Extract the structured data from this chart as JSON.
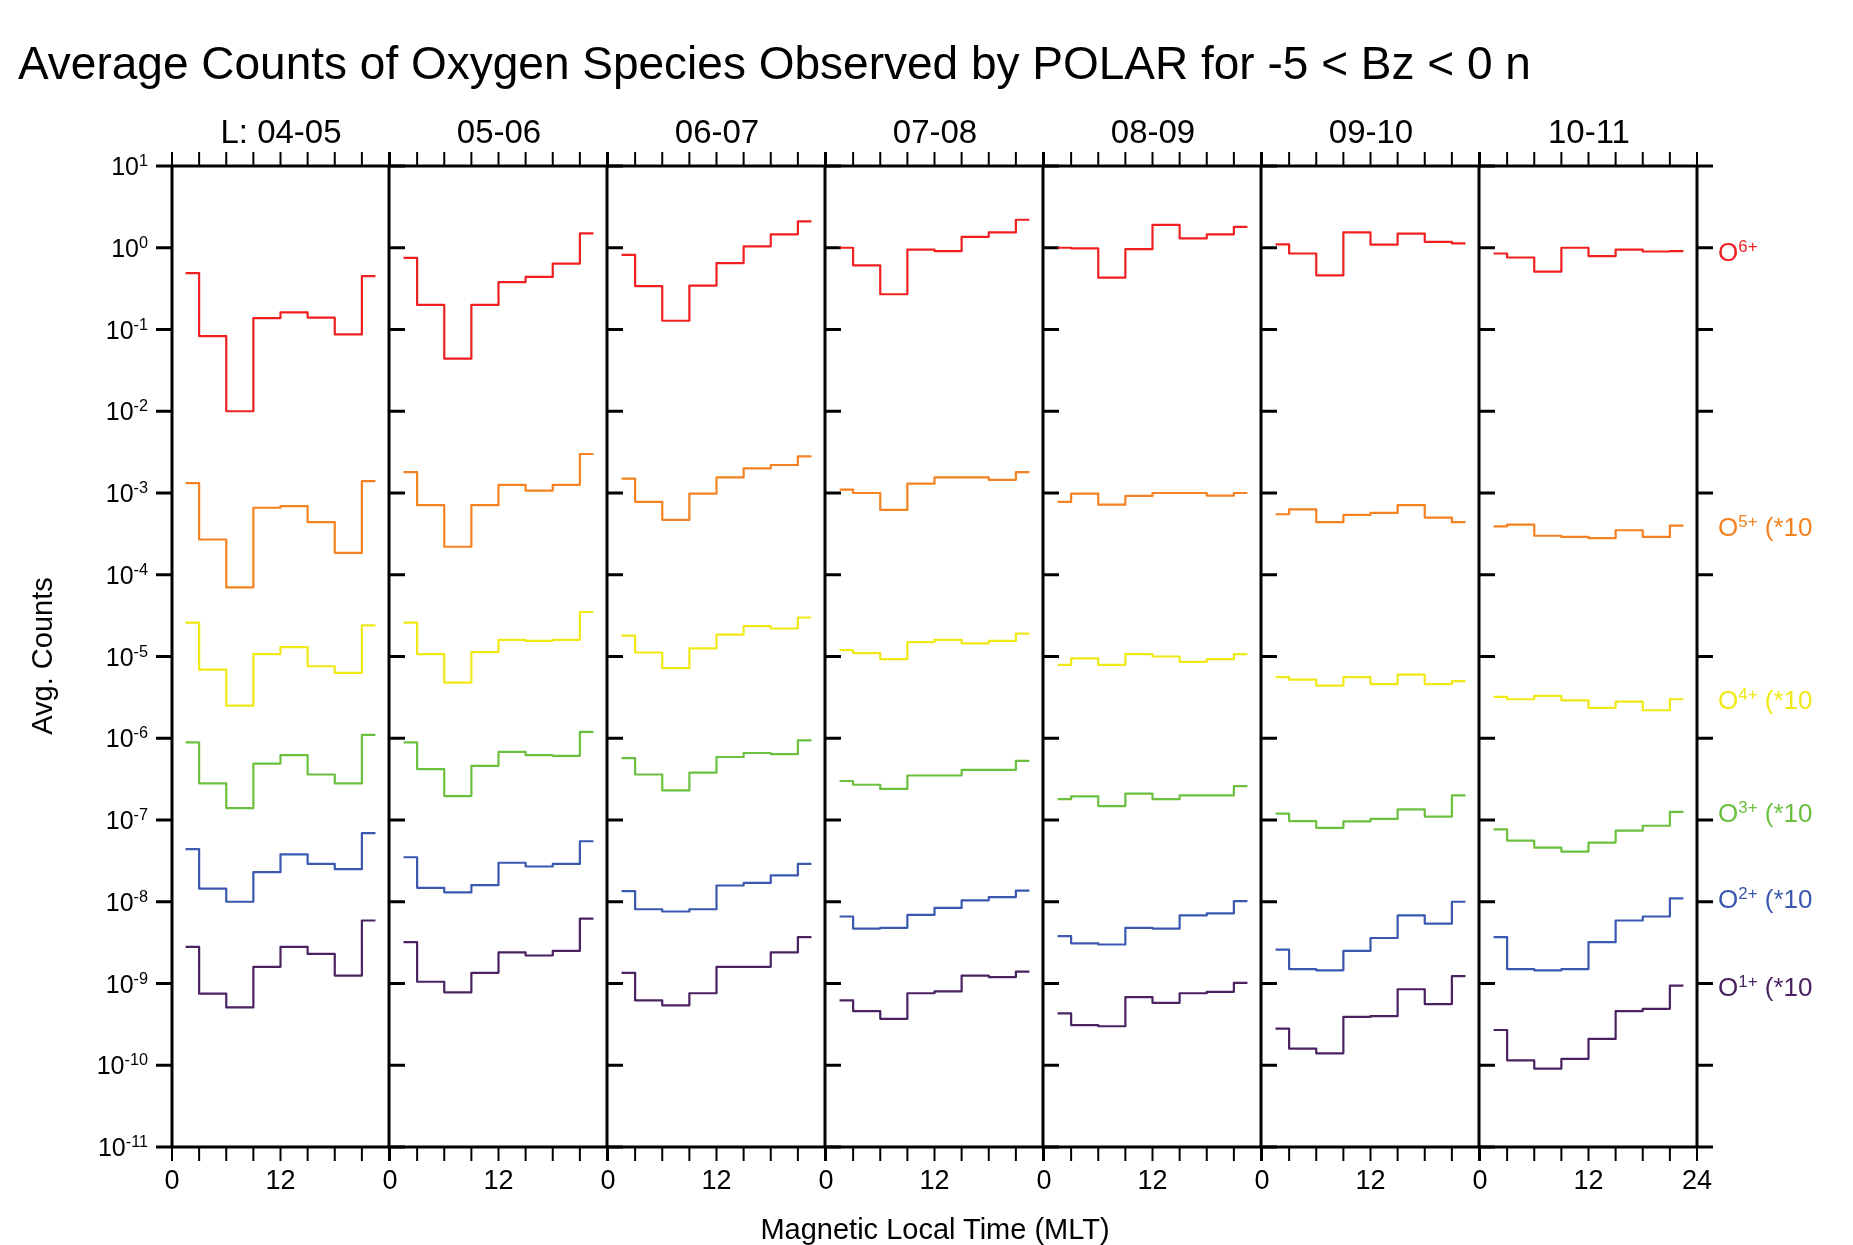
{
  "chart_data": [
    {
      "type": "step",
      "title": "Average Counts of Oxygen Species Observed by POLAR for -5 < Bz < 0 n",
      "subtitle": "L: 04-05",
      "ylabel": "Avg. Counts",
      "log": "y",
      "x": [
        1.5,
        4.5,
        7.5,
        10.5,
        13.5,
        16.5,
        19.5,
        22.5
      ],
      "xlim": [
        0,
        24
      ],
      "xticks": [
        0,
        {
          "value": 3,
          "label": null
        },
        {
          "value": 6,
          "label": null
        },
        {
          "value": 9,
          "label": null
        },
        12,
        {
          "value": 15,
          "label": null
        },
        {
          "value": 18,
          "label": null
        },
        {
          "value": 21,
          "label": null
        },
        {
          "value": 24,
          "label": null
        }
      ],
      "ylim": [
        1e-11,
        10
      ],
      "yticks": [
        {
          "value": 1e-11,
          "label": "10$^{-11}$"
        },
        {
          "value": 1e-10,
          "label": "10$^{-10}$"
        },
        {
          "value": 1e-09,
          "label": "10$^{-9}$"
        },
        {
          "value": 1e-08,
          "label": "10$^{-8}$"
        },
        {
          "value": 1e-07,
          "label": "10$^{-7}$"
        },
        {
          "value": 1e-06,
          "label": "10$^{-6}$"
        },
        {
          "value": 1e-05,
          "label": "10$^{-5}$"
        },
        {
          "value": 0.0001,
          "label": "10$^{-4}$"
        },
        {
          "value": 0.001,
          "label": "10$^{-3}$"
        },
        {
          "value": 0.01,
          "label": "10$^{-2}$"
        },
        {
          "value": 0.1,
          "label": "10$^{-1}$"
        },
        {
          "value": 1,
          "label": "10$^{0}$"
        },
        {
          "value": 10,
          "label": "10$^{1}$"
        }
      ],
      "series": [
        {
          "color": "#f02020",
          "values": [
            0.49,
            0.083,
            0.01,
            0.138,
            0.162,
            0.14,
            0.087,
            0.45
          ]
        },
        {
          "color": "#f58220",
          "values": [
            0.00132,
            0.00027,
            7e-05,
            0.00066,
            0.00069,
            0.00044,
            0.000185,
            0.0014
          ]
        },
        {
          "color": "#f0e818",
          "values": [
            2.6e-05,
            6.9e-06,
            2.5e-06,
            1.07e-05,
            1.3e-05,
            7.6e-06,
            6.3e-06,
            2.4e-05
          ]
        },
        {
          "color": "#6cc040",
          "values": [
            8.9e-07,
            2.8e-07,
            1.4e-07,
            4.9e-07,
            6.2e-07,
            3.6e-07,
            2.8e-07,
            1.1e-06
          ]
        },
        {
          "color": "#3a58b0",
          "values": [
            4.4e-08,
            1.45e-08,
            1e-08,
            2.3e-08,
            3.8e-08,
            2.9e-08,
            2.5e-08,
            6.9e-08
          ]
        },
        {
          "color": "#4a2262",
          "values": [
            2.8e-09,
            7.5e-10,
            5.1e-10,
            1.6e-09,
            2.8e-09,
            2.3e-09,
            1.25e-09,
            5.9e-09
          ]
        }
      ]
    },
    {
      "type": "step",
      "subtitle": "05-06",
      "log": "y",
      "tick_labels": "x",
      "x": [
        1.5,
        4.5,
        7.5,
        10.5,
        13.5,
        16.5,
        19.5,
        22.5
      ],
      "xlim": [
        0,
        24
      ],
      "xticks": [
        0,
        {
          "value": 3,
          "label": null
        },
        {
          "value": 6,
          "label": null
        },
        {
          "value": 9,
          "label": null
        },
        12,
        {
          "value": 15,
          "label": null
        },
        {
          "value": 18,
          "label": null
        },
        {
          "value": 21,
          "label": null
        },
        {
          "value": 24,
          "label": null
        }
      ],
      "ylim": [
        1e-11,
        10
      ],
      "yticks": [
        {
          "value": 1e-11,
          "label": null
        },
        {
          "value": 1e-10,
          "label": null
        },
        {
          "value": 1e-09,
          "label": null
        },
        {
          "value": 1e-08,
          "label": null
        },
        {
          "value": 1e-07,
          "label": null
        },
        {
          "value": 1e-06,
          "label": null
        },
        {
          "value": 1e-05,
          "label": null
        },
        {
          "value": 0.0001,
          "label": null
        },
        {
          "value": 0.001,
          "label": null
        },
        {
          "value": 0.01,
          "label": null
        },
        {
          "value": 0.1,
          "label": null
        },
        {
          "value": 1,
          "label": null
        },
        {
          "value": 10,
          "label": null
        }
      ],
      "series": [
        {
          "color": "#f02020",
          "values": [
            0.75,
            0.2,
            0.044,
            0.2,
            0.38,
            0.44,
            0.64,
            1.5
          ]
        },
        {
          "color": "#f58220",
          "values": [
            0.0018,
            0.00071,
            0.00022,
            0.00071,
            0.00126,
            0.00107,
            0.00126,
            0.003
          ]
        },
        {
          "color": "#f0e818",
          "values": [
            2.6e-05,
            1.07e-05,
            4.8e-06,
            1.13e-05,
            1.6e-05,
            1.55e-05,
            1.6e-05,
            3.5e-05
          ]
        },
        {
          "color": "#6cc040",
          "values": [
            8.9e-07,
            4.2e-07,
            1.96e-07,
            4.6e-07,
            6.8e-07,
            6.2e-07,
            6.1e-07,
            1.2e-06
          ]
        },
        {
          "color": "#3a58b0",
          "values": [
            3.5e-08,
            1.48e-08,
            1.3e-08,
            1.6e-08,
            3e-08,
            2.7e-08,
            2.9e-08,
            5.5e-08
          ]
        },
        {
          "color": "#4a2262",
          "values": [
            3.2e-09,
            1.05e-09,
            7.8e-10,
            1.35e-09,
            2.4e-09,
            2.2e-09,
            2.5e-09,
            6.2e-09
          ]
        }
      ]
    },
    {
      "type": "step",
      "subtitle": "06-07",
      "log": "y",
      "tick_labels": "x",
      "x": [
        1.5,
        4.5,
        7.5,
        10.5,
        13.5,
        16.5,
        19.5,
        22.5
      ],
      "xlim": [
        0,
        24
      ],
      "xticks": [
        0,
        {
          "value": 3,
          "label": null
        },
        {
          "value": 6,
          "label": null
        },
        {
          "value": 9,
          "label": null
        },
        12,
        {
          "value": 15,
          "label": null
        },
        {
          "value": 18,
          "label": null
        },
        {
          "value": 21,
          "label": null
        },
        {
          "value": 24,
          "label": null
        }
      ],
      "ylim": [
        1e-11,
        10
      ],
      "yticks": [
        {
          "value": 1e-11,
          "label": null
        },
        {
          "value": 1e-10,
          "label": null
        },
        {
          "value": 1e-09,
          "label": null
        },
        {
          "value": 1e-08,
          "label": null
        },
        {
          "value": 1e-07,
          "label": null
        },
        {
          "value": 1e-06,
          "label": null
        },
        {
          "value": 1e-05,
          "label": null
        },
        {
          "value": 0.0001,
          "label": null
        },
        {
          "value": 0.001,
          "label": null
        },
        {
          "value": 0.01,
          "label": null
        },
        {
          "value": 0.1,
          "label": null
        },
        {
          "value": 1,
          "label": null
        },
        {
          "value": 10,
          "label": null
        }
      ],
      "series": [
        {
          "color": "#f02020",
          "values": [
            0.82,
            0.34,
            0.128,
            0.345,
            0.65,
            1.04,
            1.46,
            2.1
          ]
        },
        {
          "color": "#f58220",
          "values": [
            0.0015,
            0.00078,
            0.00047,
            0.00098,
            0.00155,
            0.002,
            0.0022,
            0.0028
          ]
        },
        {
          "color": "#f0e818",
          "values": [
            1.8e-05,
            1.12e-05,
            7.2e-06,
            1.26e-05,
            1.85e-05,
            2.35e-05,
            2.2e-05,
            3e-05
          ]
        },
        {
          "color": "#6cc040",
          "values": [
            5.7e-07,
            3.6e-07,
            2.3e-07,
            3.8e-07,
            5.9e-07,
            6.6e-07,
            6.4e-07,
            9.4e-07
          ]
        },
        {
          "color": "#3a58b0",
          "values": [
            1.35e-08,
            8.1e-09,
            7.6e-09,
            8.1e-09,
            1.58e-08,
            1.7e-08,
            2.1e-08,
            2.9e-08
          ]
        },
        {
          "color": "#4a2262",
          "values": [
            1.35e-09,
            6.2e-10,
            5.4e-10,
            7.6e-10,
            1.6e-09,
            1.6e-09,
            2.4e-09,
            3.7e-09
          ]
        }
      ]
    },
    {
      "type": "step",
      "subtitle": "07-08",
      "xlabel": "Magnetic Local Time (MLT)",
      "log": "y",
      "tick_labels": "x",
      "x": [
        1.5,
        4.5,
        7.5,
        10.5,
        13.5,
        16.5,
        19.5,
        22.5
      ],
      "xlim": [
        0,
        24
      ],
      "xticks": [
        0,
        {
          "value": 3,
          "label": null
        },
        {
          "value": 6,
          "label": null
        },
        {
          "value": 9,
          "label": null
        },
        12,
        {
          "value": 15,
          "label": null
        },
        {
          "value": 18,
          "label": null
        },
        {
          "value": 21,
          "label": null
        },
        {
          "value": 24,
          "label": null
        }
      ],
      "ylim": [
        1e-11,
        10
      ],
      "yticks": [
        {
          "value": 1e-11,
          "label": null
        },
        {
          "value": 1e-10,
          "label": null
        },
        {
          "value": 1e-09,
          "label": null
        },
        {
          "value": 1e-08,
          "label": null
        },
        {
          "value": 1e-07,
          "label": null
        },
        {
          "value": 1e-06,
          "label": null
        },
        {
          "value": 1e-05,
          "label": null
        },
        {
          "value": 0.0001,
          "label": null
        },
        {
          "value": 0.001,
          "label": null
        },
        {
          "value": 0.01,
          "label": null
        },
        {
          "value": 0.1,
          "label": null
        },
        {
          "value": 1,
          "label": null
        },
        {
          "value": 10,
          "label": null
        }
      ],
      "series": [
        {
          "color": "#f02020",
          "values": [
            1.0,
            0.61,
            0.27,
            0.95,
            0.91,
            1.36,
            1.54,
            2.2
          ]
        },
        {
          "color": "#f58220",
          "values": [
            0.0011,
            0.001,
            0.00062,
            0.0013,
            0.00155,
            0.00155,
            0.00145,
            0.0018
          ]
        },
        {
          "color": "#f0e818",
          "values": [
            1.2e-05,
            1.1e-05,
            9.3e-06,
            1.5e-05,
            1.6e-05,
            1.45e-05,
            1.55e-05,
            1.9e-05
          ]
        },
        {
          "color": "#6cc040",
          "values": [
            3e-07,
            2.7e-07,
            2.4e-07,
            3.5e-07,
            3.5e-07,
            4.1e-07,
            4.1e-07,
            5.3e-07
          ]
        },
        {
          "color": "#3a58b0",
          "values": [
            6.6e-09,
            4.7e-09,
            4.8e-09,
            6.9e-09,
            8.4e-09,
            1.04e-08,
            1.14e-08,
            1.37e-08
          ]
        },
        {
          "color": "#4a2262",
          "values": [
            6.2e-10,
            4.6e-10,
            3.7e-10,
            7.6e-10,
            8e-10,
            1.25e-09,
            1.2e-09,
            1.4e-09
          ]
        }
      ]
    },
    {
      "type": "step",
      "subtitle": "08-09",
      "log": "y",
      "tick_labels": "x",
      "x": [
        1.5,
        4.5,
        7.5,
        10.5,
        13.5,
        16.5,
        19.5,
        22.5
      ],
      "xlim": [
        0,
        24
      ],
      "xticks": [
        0,
        {
          "value": 3,
          "label": null
        },
        {
          "value": 6,
          "label": null
        },
        {
          "value": 9,
          "label": null
        },
        12,
        {
          "value": 15,
          "label": null
        },
        {
          "value": 18,
          "label": null
        },
        {
          "value": 21,
          "label": null
        },
        {
          "value": 24,
          "label": null
        }
      ],
      "ylim": [
        1e-11,
        10
      ],
      "yticks": [
        {
          "value": 1e-11,
          "label": null
        },
        {
          "value": 1e-10,
          "label": null
        },
        {
          "value": 1e-09,
          "label": null
        },
        {
          "value": 1e-08,
          "label": null
        },
        {
          "value": 1e-07,
          "label": null
        },
        {
          "value": 1e-06,
          "label": null
        },
        {
          "value": 1e-05,
          "label": null
        },
        {
          "value": 0.0001,
          "label": null
        },
        {
          "value": 0.001,
          "label": null
        },
        {
          "value": 0.01,
          "label": null
        },
        {
          "value": 0.1,
          "label": null
        },
        {
          "value": 1,
          "label": null
        },
        {
          "value": 10,
          "label": null
        }
      ],
      "series": [
        {
          "color": "#f02020",
          "values": [
            1.0,
            0.98,
            0.43,
            0.96,
            1.9,
            1.3,
            1.46,
            1.8
          ]
        },
        {
          "color": "#f58220",
          "values": [
            0.00078,
            0.00098,
            0.00072,
            0.00092,
            0.001,
            0.001,
            0.00093,
            0.001
          ]
        },
        {
          "color": "#f0e818",
          "values": [
            7.9e-06,
            9.5e-06,
            7.9e-06,
            1.07e-05,
            1e-05,
            8.6e-06,
            9.3e-06,
            1.07e-05
          ]
        },
        {
          "color": "#6cc040",
          "values": [
            1.8e-07,
            1.95e-07,
            1.48e-07,
            2.1e-07,
            1.8e-07,
            2e-07,
            2e-07,
            2.6e-07
          ]
        },
        {
          "color": "#3a58b0",
          "values": [
            3.8e-09,
            3.1e-09,
            3e-09,
            4.8e-09,
            4.7e-09,
            6.8e-09,
            7.2e-09,
            1.02e-08
          ]
        },
        {
          "color": "#4a2262",
          "values": [
            4.3e-10,
            3.1e-10,
            3e-10,
            6.8e-10,
            5.8e-10,
            7.6e-10,
            7.9e-10,
            1.02e-09
          ]
        }
      ]
    },
    {
      "type": "step",
      "subtitle": "09-10",
      "log": "y",
      "tick_labels": "x",
      "x": [
        1.5,
        4.5,
        7.5,
        10.5,
        13.5,
        16.5,
        19.5,
        22.5
      ],
      "xlim": [
        0,
        24
      ],
      "xticks": [
        0,
        {
          "value": 3,
          "label": null
        },
        {
          "value": 6,
          "label": null
        },
        {
          "value": 9,
          "label": null
        },
        12,
        {
          "value": 15,
          "label": null
        },
        {
          "value": 18,
          "label": null
        },
        {
          "value": 21,
          "label": null
        },
        {
          "value": 24,
          "label": null
        }
      ],
      "ylim": [
        1e-11,
        10
      ],
      "yticks": [
        {
          "value": 1e-11,
          "label": null
        },
        {
          "value": 1e-10,
          "label": null
        },
        {
          "value": 1e-09,
          "label": null
        },
        {
          "value": 1e-08,
          "label": null
        },
        {
          "value": 1e-07,
          "label": null
        },
        {
          "value": 1e-06,
          "label": null
        },
        {
          "value": 1e-05,
          "label": null
        },
        {
          "value": 0.0001,
          "label": null
        },
        {
          "value": 0.001,
          "label": null
        },
        {
          "value": 0.01,
          "label": null
        },
        {
          "value": 0.1,
          "label": null
        },
        {
          "value": 1,
          "label": null
        },
        {
          "value": 10,
          "label": null
        }
      ],
      "series": [
        {
          "color": "#f02020",
          "values": [
            1.1,
            0.85,
            0.46,
            1.54,
            1.09,
            1.49,
            1.18,
            1.13
          ]
        },
        {
          "color": "#f58220",
          "values": [
            0.00055,
            0.00063,
            0.00044,
            0.00054,
            0.00057,
            0.00071,
            0.0005,
            0.00044
          ]
        },
        {
          "color": "#f0e818",
          "values": [
            5.6e-06,
            5.2e-06,
            4.4e-06,
            5.6e-06,
            4.6e-06,
            6e-06,
            4.6e-06,
            5e-06
          ]
        },
        {
          "color": "#6cc040",
          "values": [
            1.2e-07,
            9.7e-08,
            8e-08,
            9.6e-08,
            1.03e-07,
            1.35e-07,
            1.1e-07,
            2e-07
          ]
        },
        {
          "color": "#3a58b0",
          "values": [
            2.6e-09,
            1.5e-09,
            1.45e-09,
            2.5e-09,
            3.6e-09,
            6.8e-09,
            5.4e-09,
            1e-08
          ]
        },
        {
          "color": "#4a2262",
          "values": [
            2.8e-10,
            1.6e-10,
            1.4e-10,
            3.9e-10,
            4e-10,
            8.5e-10,
            5.6e-10,
            1.23e-09
          ]
        }
      ]
    },
    {
      "type": "step",
      "subtitle": "10-11",
      "log": "y",
      "tick_labels": "x",
      "x": [
        1.5,
        4.5,
        7.5,
        10.5,
        13.5,
        16.5,
        19.5,
        22.5
      ],
      "xlim": [
        0,
        24
      ],
      "xticks": [
        0,
        {
          "value": 3,
          "label": null
        },
        {
          "value": 6,
          "label": null
        },
        {
          "value": 9,
          "label": null
        },
        12,
        {
          "value": 15,
          "label": null
        },
        {
          "value": 18,
          "label": null
        },
        {
          "value": 21,
          "label": null
        },
        24
      ],
      "ylim": [
        1e-11,
        10
      ],
      "yticks": [
        {
          "value": 1e-11,
          "label": null
        },
        {
          "value": 1e-10,
          "label": null
        },
        {
          "value": 1e-09,
          "label": null
        },
        {
          "value": 1e-08,
          "label": null
        },
        {
          "value": 1e-07,
          "label": null
        },
        {
          "value": 1e-06,
          "label": null
        },
        {
          "value": 1e-05,
          "label": null
        },
        {
          "value": 0.0001,
          "label": null
        },
        {
          "value": 0.001,
          "label": null
        },
        {
          "value": 0.01,
          "label": null
        },
        {
          "value": 0.1,
          "label": null
        },
        {
          "value": 1,
          "label": null
        },
        {
          "value": 10,
          "label": null
        }
      ],
      "series": [
        {
          "name": "O$^{6+}$",
          "color": "#f02020",
          "values": [
            0.85,
            0.76,
            0.51,
            1.0,
            0.79,
            0.95,
            0.9,
            0.91
          ]
        },
        {
          "name": "O$^{5+}$ (*10",
          "color": "#f58220",
          "values": [
            0.00039,
            0.00041,
            0.0003,
            0.00029,
            0.00028,
            0.00035,
            0.00029,
            0.0004
          ]
        },
        {
          "name": "O$^{4+}$ (*10",
          "color": "#f0e818",
          "values": [
            3.2e-06,
            3e-06,
            3.3e-06,
            2.9e-06,
            2.35e-06,
            2.8e-06,
            2.2e-06,
            3e-06
          ]
        },
        {
          "name": "O$^{3+}$ (*10",
          "color": "#6cc040",
          "values": [
            7.7e-08,
            5.6e-08,
            4.6e-08,
            4.1e-08,
            5.3e-08,
            7.4e-08,
            8.5e-08,
            1.26e-07
          ]
        },
        {
          "name": "O$^{2+}$ (*10",
          "color": "#3a58b0",
          "values": [
            3.7e-09,
            1.5e-09,
            1.45e-09,
            1.5e-09,
            3.2e-09,
            5.9e-09,
            6.6e-09,
            1.1e-08
          ]
        },
        {
          "name": "O$^{1+}$ (*10",
          "color": "#4a2262",
          "values": [
            2.7e-10,
            1.15e-10,
            9.1e-11,
            1.2e-10,
            2.1e-10,
            4.6e-10,
            4.9e-10,
            9.4e-10
          ]
        }
      ]
    }
  ]
}
